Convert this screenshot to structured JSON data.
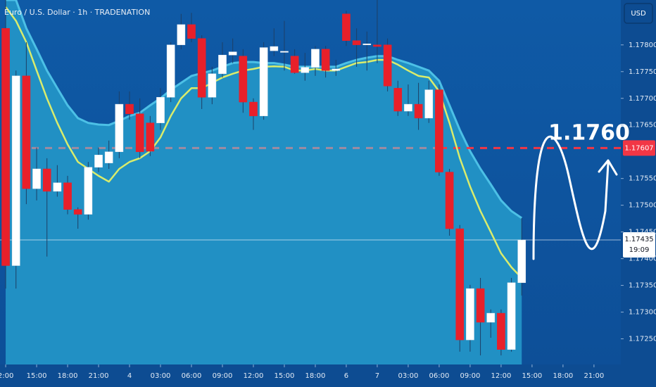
{
  "chart_data": {
    "type": "candlestick",
    "title": "Euro / U.S. Dollar · 1h · TRADENATION",
    "currency": "USD",
    "annotation": "1.1760",
    "level": 1.17607,
    "level_color": "#f23645",
    "current_price": 1.17435,
    "countdown": "19:09",
    "up_color": "#ffffff",
    "down_color": "#e8202a",
    "open": [
      1.17831,
      1.17387,
      1.17742,
      1.17531,
      1.17568,
      1.17526,
      1.17542,
      1.17492,
      1.17483,
      1.17571,
      1.17579,
      1.176,
      1.17689,
      1.17671,
      1.17654,
      1.17654,
      1.17702,
      1.178,
      1.17838,
      1.17812,
      1.17702,
      1.17746,
      1.17781,
      1.17779,
      1.17693,
      1.17667,
      1.17789,
      1.17787,
      1.17779,
      1.17748,
      1.17758,
      1.17792,
      1.17752,
      1.17858,
      1.17808,
      1.178,
      1.178,
      1.178,
      1.17719,
      1.17676,
      1.17689,
      1.17663,
      1.17716,
      1.17562,
      1.17456,
      1.17248,
      1.17344,
      1.17281,
      1.17298,
      1.1723,
      1.17355
    ],
    "high": [
      1.17884,
      1.17752,
      1.17805,
      1.17608,
      1.17588,
      1.17575,
      1.17555,
      1.17496,
      1.17581,
      1.17608,
      1.17621,
      1.17713,
      1.17713,
      1.177,
      1.17667,
      1.17719,
      1.17805,
      1.17858,
      1.1786,
      1.17818,
      1.17759,
      1.17805,
      1.17812,
      1.17792,
      1.177,
      1.17805,
      1.17831,
      1.17845,
      1.17792,
      1.17785,
      1.17798,
      1.17798,
      1.17772,
      1.17864,
      1.17831,
      1.17825,
      1.17884,
      1.17812,
      1.17733,
      1.17726,
      1.17729,
      1.17733,
      1.17726,
      1.17568,
      1.17463,
      1.17351,
      1.17364,
      1.17305,
      1.17305,
      1.17364,
      1.17476
    ],
    "low": [
      1.17344,
      1.17344,
      1.17502,
      1.17509,
      1.17404,
      1.17516,
      1.17483,
      1.17456,
      1.17473,
      1.17562,
      1.17568,
      1.17588,
      1.1766,
      1.17588,
      1.17592,
      1.17641,
      1.17693,
      1.17792,
      1.17805,
      1.1768,
      1.17689,
      1.17739,
      1.17766,
      1.17673,
      1.17641,
      1.1766,
      1.17779,
      1.17752,
      1.17746,
      1.17733,
      1.17742,
      1.17739,
      1.17742,
      1.17798,
      1.17759,
      1.17752,
      1.17766,
      1.17713,
      1.17667,
      1.17667,
      1.17641,
      1.17654,
      1.17555,
      1.17443,
      1.17226,
      1.17226,
      1.17219,
      1.17252,
      1.17219,
      1.17226,
      1.17331
    ],
    "close": [
      1.17387,
      1.17742,
      1.17531,
      1.17568,
      1.17526,
      1.17542,
      1.17492,
      1.17483,
      1.17571,
      1.17594,
      1.176,
      1.17689,
      1.17671,
      1.176,
      1.17601,
      1.17702,
      1.178,
      1.17838,
      1.17812,
      1.17702,
      1.17746,
      1.17781,
      1.17787,
      1.17693,
      1.17667,
      1.17795,
      1.17797,
      1.17788,
      1.17748,
      1.17758,
      1.17792,
      1.17752,
      1.17755,
      1.17808,
      1.178,
      1.17802,
      1.17797,
      1.17723,
      1.17676,
      1.17689,
      1.17663,
      1.17716,
      1.17562,
      1.17456,
      1.17248,
      1.17344,
      1.17281,
      1.17298,
      1.1723,
      1.17355,
      1.17435
    ],
    "band": {
      "color": "#2394c6",
      "line_color": "#4cc0e6",
      "values": [
        1.17884,
        1.17884,
        1.17831,
        1.17792,
        1.17752,
        1.17719,
        1.17687,
        1.17663,
        1.17654,
        1.17651,
        1.1765,
        1.17658,
        1.17667,
        1.17673,
        1.17687,
        1.177,
        1.17716,
        1.17729,
        1.17742,
        1.17747,
        1.17752,
        1.17759,
        1.17766,
        1.17768,
        1.17768,
        1.17766,
        1.17766,
        1.17763,
        1.17759,
        1.17759,
        1.17759,
        1.17759,
        1.17759,
        1.17766,
        1.17772,
        1.17776,
        1.17779,
        1.17779,
        1.17772,
        1.17766,
        1.17759,
        1.17752,
        1.17733,
        1.17687,
        1.17641,
        1.17601,
        1.17568,
        1.17539,
        1.17509,
        1.17489,
        1.17476
      ]
    },
    "line": {
      "color": "#d9ec6c",
      "values": [
        1.17871,
        1.17845,
        1.17805,
        1.17752,
        1.177,
        1.17654,
        1.17614,
        1.17581,
        1.17568,
        1.17555,
        1.17544,
        1.17568,
        1.17581,
        1.17588,
        1.17601,
        1.17627,
        1.17667,
        1.177,
        1.17719,
        1.17719,
        1.17729,
        1.17739,
        1.17746,
        1.17752,
        1.17755,
        1.17759,
        1.1776,
        1.17759,
        1.17752,
        1.17752,
        1.17755,
        1.17752,
        1.17752,
        1.17759,
        1.17766,
        1.17768,
        1.17772,
        1.17772,
        1.17763,
        1.17752,
        1.17742,
        1.17739,
        1.17713,
        1.17654,
        1.17588,
        1.17535,
        1.17489,
        1.1745,
        1.1741,
        1.17384,
        1.17364
      ]
    },
    "xlim": [
      -0.55,
      59.6
    ],
    "ylim": [
      1.17202,
      1.17884
    ],
    "xticks": [
      {
        "value": 0,
        "label": "2:00"
      },
      {
        "value": 3,
        "label": "15:00"
      },
      {
        "value": 6,
        "label": "18:00"
      },
      {
        "value": 9,
        "label": "21:00"
      },
      {
        "value": 12,
        "label": "4"
      },
      {
        "value": 15,
        "label": "03:00"
      },
      {
        "value": 18,
        "label": "06:00"
      },
      {
        "value": 21,
        "label": "09:00"
      },
      {
        "value": 24,
        "label": "12:00"
      },
      {
        "value": 27,
        "label": "15:00"
      },
      {
        "value": 30,
        "label": "18:00"
      },
      {
        "value": 33,
        "label": "6"
      },
      {
        "value": 36,
        "label": "7"
      },
      {
        "value": 39,
        "label": "03:00"
      },
      {
        "value": 42,
        "label": "06:00"
      },
      {
        "value": 45,
        "label": "09:00"
      },
      {
        "value": 48,
        "label": "12:00"
      },
      {
        "value": 51,
        "label": "15:00"
      },
      {
        "value": 54,
        "label": "18:00"
      },
      {
        "value": 57,
        "label": "21:00"
      }
    ],
    "yticks": [
      {
        "value": 1.1725,
        "label": "1.17250"
      },
      {
        "value": 1.173,
        "label": "1.17300"
      },
      {
        "value": 1.1735,
        "label": "1.17350"
      },
      {
        "value": 1.174,
        "label": "1.17400"
      },
      {
        "value": 1.1745,
        "label": "1.17450"
      },
      {
        "value": 1.175,
        "label": "1.17500"
      },
      {
        "value": 1.1755,
        "label": "1.17550"
      },
      {
        "value": 1.1765,
        "label": "1.17650"
      },
      {
        "value": 1.177,
        "label": "1.17700"
      },
      {
        "value": 1.1775,
        "label": "1.17750"
      },
      {
        "value": 1.178,
        "label": "1.17800"
      }
    ]
  }
}
